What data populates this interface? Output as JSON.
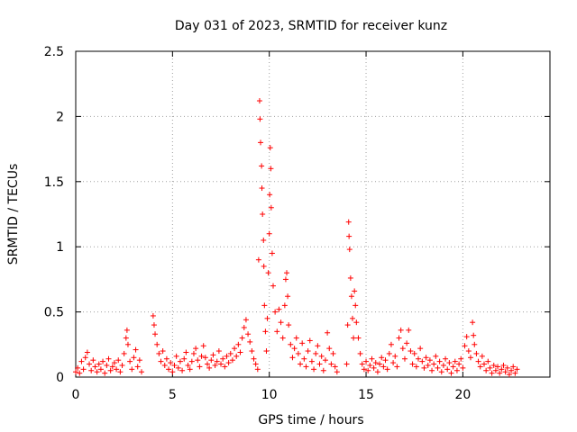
{
  "chart_data": {
    "type": "scatter",
    "title": "Day 031 of 2023, SRMTID for receiver kunz",
    "xlabel": "GPS time / hours",
    "ylabel": "SRMTID / TECUs",
    "xlim": [
      0,
      24.5
    ],
    "ylim": [
      0,
      2.5
    ],
    "grid": true,
    "marker": "+",
    "color": "#ff0000",
    "x_ticks": [
      0,
      5,
      10,
      15,
      20
    ],
    "x_tick_labels": [
      "0",
      "5",
      "10",
      "15",
      "20"
    ],
    "y_ticks": [
      0,
      0.5,
      1,
      1.5,
      2,
      2.5
    ],
    "y_tick_labels": [
      "0",
      "0.5",
      "1",
      "1.5",
      "2",
      "2.5"
    ],
    "series": [
      {
        "name": "SRMTID",
        "points": [
          [
            0.0,
            0.04
          ],
          [
            0.1,
            0.07
          ],
          [
            0.2,
            0.03
          ],
          [
            0.3,
            0.12
          ],
          [
            0.4,
            0.06
          ],
          [
            0.5,
            0.15
          ],
          [
            0.6,
            0.19
          ],
          [
            0.7,
            0.1
          ],
          [
            0.8,
            0.05
          ],
          [
            0.9,
            0.13
          ],
          [
            1.0,
            0.08
          ],
          [
            1.1,
            0.04
          ],
          [
            1.2,
            0.1
          ],
          [
            1.3,
            0.06
          ],
          [
            1.4,
            0.12
          ],
          [
            1.5,
            0.03
          ],
          [
            1.6,
            0.09
          ],
          [
            1.7,
            0.14
          ],
          [
            1.8,
            0.05
          ],
          [
            1.9,
            0.08
          ],
          [
            2.0,
            0.11
          ],
          [
            2.1,
            0.06
          ],
          [
            2.2,
            0.13
          ],
          [
            2.3,
            0.04
          ],
          [
            2.4,
            0.09
          ],
          [
            2.5,
            0.18
          ],
          [
            2.6,
            0.3
          ],
          [
            2.65,
            0.36
          ],
          [
            2.7,
            0.25
          ],
          [
            2.8,
            0.12
          ],
          [
            2.9,
            0.06
          ],
          [
            3.0,
            0.15
          ],
          [
            3.1,
            0.21
          ],
          [
            3.2,
            0.08
          ],
          [
            3.3,
            0.13
          ],
          [
            3.4,
            0.04
          ],
          [
            4.0,
            0.47
          ],
          [
            4.05,
            0.4
          ],
          [
            4.1,
            0.33
          ],
          [
            4.2,
            0.25
          ],
          [
            4.3,
            0.18
          ],
          [
            4.4,
            0.12
          ],
          [
            4.5,
            0.2
          ],
          [
            4.6,
            0.09
          ],
          [
            4.7,
            0.14
          ],
          [
            4.8,
            0.06
          ],
          [
            4.9,
            0.11
          ],
          [
            5.0,
            0.04
          ],
          [
            5.1,
            0.09
          ],
          [
            5.2,
            0.16
          ],
          [
            5.3,
            0.07
          ],
          [
            5.4,
            0.12
          ],
          [
            5.5,
            0.05
          ],
          [
            5.6,
            0.14
          ],
          [
            5.7,
            0.19
          ],
          [
            5.8,
            0.09
          ],
          [
            5.9,
            0.06
          ],
          [
            6.0,
            0.12
          ],
          [
            6.1,
            0.18
          ],
          [
            6.2,
            0.22
          ],
          [
            6.3,
            0.13
          ],
          [
            6.4,
            0.08
          ],
          [
            6.5,
            0.16
          ],
          [
            6.6,
            0.24
          ],
          [
            6.7,
            0.15
          ],
          [
            6.8,
            0.1
          ],
          [
            6.9,
            0.07
          ],
          [
            7.0,
            0.13
          ],
          [
            7.1,
            0.17
          ],
          [
            7.2,
            0.09
          ],
          [
            7.3,
            0.12
          ],
          [
            7.4,
            0.2
          ],
          [
            7.5,
            0.1
          ],
          [
            7.6,
            0.14
          ],
          [
            7.7,
            0.08
          ],
          [
            7.8,
            0.16
          ],
          [
            7.9,
            0.11
          ],
          [
            8.0,
            0.18
          ],
          [
            8.1,
            0.13
          ],
          [
            8.2,
            0.22
          ],
          [
            8.3,
            0.16
          ],
          [
            8.4,
            0.25
          ],
          [
            8.5,
            0.19
          ],
          [
            8.6,
            0.3
          ],
          [
            8.7,
            0.38
          ],
          [
            8.8,
            0.44
          ],
          [
            8.9,
            0.33
          ],
          [
            9.0,
            0.27
          ],
          [
            9.1,
            0.2
          ],
          [
            9.2,
            0.14
          ],
          [
            9.3,
            0.1
          ],
          [
            9.4,
            0.06
          ],
          [
            9.45,
            0.9
          ],
          [
            9.5,
            2.12
          ],
          [
            9.52,
            1.98
          ],
          [
            9.55,
            1.8
          ],
          [
            9.6,
            1.62
          ],
          [
            9.62,
            1.45
          ],
          [
            9.65,
            1.25
          ],
          [
            9.7,
            1.05
          ],
          [
            9.72,
            0.85
          ],
          [
            9.75,
            0.55
          ],
          [
            9.8,
            0.35
          ],
          [
            9.85,
            0.2
          ],
          [
            9.9,
            0.45
          ],
          [
            9.95,
            0.8
          ],
          [
            10.0,
            1.1
          ],
          [
            10.02,
            1.4
          ],
          [
            10.05,
            1.76
          ],
          [
            10.08,
            1.6
          ],
          [
            10.1,
            1.3
          ],
          [
            10.15,
            0.95
          ],
          [
            10.2,
            0.7
          ],
          [
            10.3,
            0.5
          ],
          [
            10.4,
            0.35
          ],
          [
            10.5,
            0.52
          ],
          [
            10.6,
            0.42
          ],
          [
            10.7,
            0.3
          ],
          [
            10.8,
            0.55
          ],
          [
            10.85,
            0.75
          ],
          [
            10.9,
            0.8
          ],
          [
            10.95,
            0.62
          ],
          [
            11.0,
            0.4
          ],
          [
            11.1,
            0.25
          ],
          [
            11.2,
            0.15
          ],
          [
            11.3,
            0.22
          ],
          [
            11.4,
            0.3
          ],
          [
            11.5,
            0.18
          ],
          [
            11.6,
            0.1
          ],
          [
            11.7,
            0.26
          ],
          [
            11.8,
            0.14
          ],
          [
            11.9,
            0.08
          ],
          [
            12.0,
            0.2
          ],
          [
            12.1,
            0.28
          ],
          [
            12.2,
            0.12
          ],
          [
            12.3,
            0.06
          ],
          [
            12.4,
            0.18
          ],
          [
            12.5,
            0.24
          ],
          [
            12.6,
            0.1
          ],
          [
            12.7,
            0.16
          ],
          [
            12.8,
            0.05
          ],
          [
            12.9,
            0.13
          ],
          [
            13.0,
            0.34
          ],
          [
            13.1,
            0.22
          ],
          [
            13.2,
            0.1
          ],
          [
            13.3,
            0.18
          ],
          [
            13.4,
            0.08
          ],
          [
            13.5,
            0.04
          ],
          [
            14.0,
            0.1
          ],
          [
            14.05,
            0.4
          ],
          [
            14.1,
            1.19
          ],
          [
            14.12,
            1.08
          ],
          [
            14.15,
            0.98
          ],
          [
            14.2,
            0.76
          ],
          [
            14.25,
            0.62
          ],
          [
            14.3,
            0.45
          ],
          [
            14.35,
            0.3
          ],
          [
            14.4,
            0.66
          ],
          [
            14.45,
            0.55
          ],
          [
            14.5,
            0.42
          ],
          [
            14.6,
            0.3
          ],
          [
            14.7,
            0.18
          ],
          [
            14.8,
            0.1
          ],
          [
            14.9,
            0.06
          ],
          [
            15.0,
            0.12
          ],
          [
            15.1,
            0.05
          ],
          [
            15.2,
            0.09
          ],
          [
            15.3,
            0.14
          ],
          [
            15.4,
            0.07
          ],
          [
            15.5,
            0.11
          ],
          [
            15.6,
            0.04
          ],
          [
            15.7,
            0.1
          ],
          [
            15.8,
            0.15
          ],
          [
            15.9,
            0.08
          ],
          [
            16.0,
            0.13
          ],
          [
            16.1,
            0.06
          ],
          [
            16.2,
            0.18
          ],
          [
            16.3,
            0.25
          ],
          [
            16.4,
            0.11
          ],
          [
            16.5,
            0.16
          ],
          [
            16.6,
            0.08
          ],
          [
            16.7,
            0.3
          ],
          [
            16.8,
            0.36
          ],
          [
            16.9,
            0.22
          ],
          [
            17.0,
            0.14
          ],
          [
            17.1,
            0.26
          ],
          [
            17.2,
            0.36
          ],
          [
            17.3,
            0.2
          ],
          [
            17.4,
            0.1
          ],
          [
            17.5,
            0.18
          ],
          [
            17.6,
            0.08
          ],
          [
            17.7,
            0.14
          ],
          [
            17.8,
            0.22
          ],
          [
            17.9,
            0.12
          ],
          [
            18.0,
            0.07
          ],
          [
            18.1,
            0.15
          ],
          [
            18.2,
            0.09
          ],
          [
            18.3,
            0.13
          ],
          [
            18.4,
            0.05
          ],
          [
            18.5,
            0.1
          ],
          [
            18.6,
            0.16
          ],
          [
            18.7,
            0.07
          ],
          [
            18.8,
            0.12
          ],
          [
            18.9,
            0.04
          ],
          [
            19.0,
            0.09
          ],
          [
            19.1,
            0.14
          ],
          [
            19.2,
            0.06
          ],
          [
            19.3,
            0.11
          ],
          [
            19.4,
            0.03
          ],
          [
            19.5,
            0.08
          ],
          [
            19.6,
            0.12
          ],
          [
            19.7,
            0.05
          ],
          [
            19.8,
            0.1
          ],
          [
            19.9,
            0.14
          ],
          [
            20.0,
            0.07
          ],
          [
            20.1,
            0.24
          ],
          [
            20.2,
            0.31
          ],
          [
            20.3,
            0.2
          ],
          [
            20.4,
            0.15
          ],
          [
            20.5,
            0.42
          ],
          [
            20.55,
            0.32
          ],
          [
            20.6,
            0.25
          ],
          [
            20.7,
            0.18
          ],
          [
            20.8,
            0.12
          ],
          [
            20.9,
            0.08
          ],
          [
            21.0,
            0.16
          ],
          [
            21.1,
            0.1
          ],
          [
            21.2,
            0.05
          ],
          [
            21.3,
            0.12
          ],
          [
            21.4,
            0.07
          ],
          [
            21.5,
            0.03
          ],
          [
            21.6,
            0.09
          ],
          [
            21.7,
            0.05
          ],
          [
            21.8,
            0.08
          ],
          [
            21.9,
            0.03
          ],
          [
            22.0,
            0.06
          ],
          [
            22.1,
            0.09
          ],
          [
            22.2,
            0.04
          ],
          [
            22.3,
            0.07
          ],
          [
            22.4,
            0.02
          ],
          [
            22.5,
            0.05
          ],
          [
            22.6,
            0.08
          ],
          [
            22.7,
            0.03
          ],
          [
            22.8,
            0.06
          ]
        ]
      }
    ]
  }
}
